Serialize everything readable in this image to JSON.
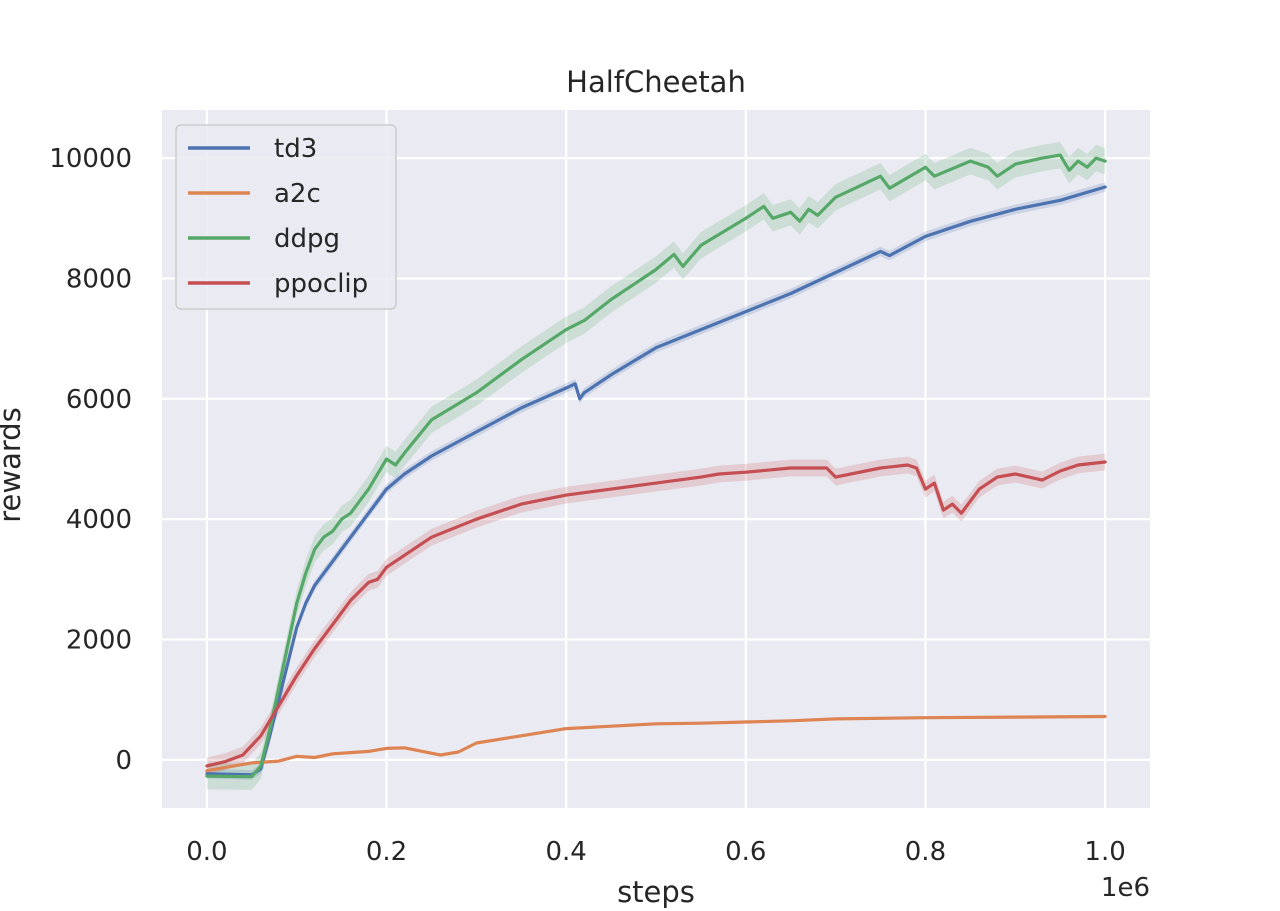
{
  "chart_data": {
    "type": "line",
    "title": "HalfCheetah",
    "xlabel": "steps",
    "ylabel": "rewards",
    "x_offset_label": "1e6",
    "xlim": [
      -0.05,
      1.05
    ],
    "ylim": [
      -800,
      10800
    ],
    "x_ticks": [
      0.0,
      0.2,
      0.4,
      0.6,
      0.8,
      1.0
    ],
    "x_tick_labels": [
      "0.0",
      "0.2",
      "0.4",
      "0.6",
      "0.8",
      "1.0"
    ],
    "y_ticks": [
      0,
      2000,
      4000,
      6000,
      8000,
      10000
    ],
    "y_tick_labels": [
      "0",
      "2000",
      "4000",
      "6000",
      "8000",
      "10000"
    ],
    "grid": true,
    "background": "#eaeaf2",
    "legend_position": "upper-left",
    "series": [
      {
        "name": "td3",
        "color": "#4c72b0",
        "x": [
          0.0,
          0.05,
          0.06,
          0.07,
          0.08,
          0.09,
          0.1,
          0.11,
          0.12,
          0.13,
          0.14,
          0.15,
          0.16,
          0.17,
          0.18,
          0.2,
          0.22,
          0.25,
          0.3,
          0.35,
          0.4,
          0.41,
          0.415,
          0.42,
          0.45,
          0.5,
          0.55,
          0.6,
          0.65,
          0.7,
          0.75,
          0.76,
          0.8,
          0.85,
          0.9,
          0.95,
          1.0
        ],
        "y": [
          -230,
          -250,
          -150,
          400,
          1000,
          1600,
          2200,
          2600,
          2900,
          3100,
          3300,
          3500,
          3700,
          3900,
          4100,
          4500,
          4750,
          5050,
          5450,
          5850,
          6180,
          6250,
          6000,
          6100,
          6400,
          6850,
          7150,
          7450,
          7750,
          8100,
          8450,
          8380,
          8700,
          8950,
          9150,
          9300,
          9520
        ],
        "band": 80
      },
      {
        "name": "a2c",
        "color": "#dd8452",
        "x": [
          0.0,
          0.03,
          0.05,
          0.08,
          0.1,
          0.12,
          0.14,
          0.16,
          0.18,
          0.2,
          0.22,
          0.24,
          0.26,
          0.28,
          0.3,
          0.35,
          0.4,
          0.45,
          0.5,
          0.55,
          0.6,
          0.65,
          0.7,
          0.8,
          0.9,
          1.0
        ],
        "y": [
          -180,
          -100,
          -50,
          -20,
          60,
          40,
          100,
          120,
          140,
          190,
          200,
          140,
          80,
          130,
          280,
          400,
          520,
          560,
          600,
          610,
          630,
          650,
          680,
          700,
          710,
          720
        ],
        "band": 20
      },
      {
        "name": "ddpg",
        "color": "#55a868",
        "x": [
          0.0,
          0.05,
          0.06,
          0.07,
          0.08,
          0.09,
          0.1,
          0.11,
          0.12,
          0.13,
          0.14,
          0.15,
          0.16,
          0.17,
          0.18,
          0.2,
          0.21,
          0.22,
          0.25,
          0.3,
          0.35,
          0.4,
          0.42,
          0.45,
          0.5,
          0.52,
          0.53,
          0.55,
          0.6,
          0.62,
          0.63,
          0.65,
          0.66,
          0.67,
          0.68,
          0.7,
          0.75,
          0.76,
          0.8,
          0.81,
          0.85,
          0.87,
          0.88,
          0.9,
          0.93,
          0.95,
          0.96,
          0.97,
          0.98,
          0.99,
          1.0
        ],
        "y": [
          -270,
          -280,
          -100,
          500,
          1200,
          1900,
          2600,
          3100,
          3500,
          3700,
          3800,
          4000,
          4100,
          4300,
          4500,
          5000,
          4900,
          5100,
          5650,
          6100,
          6650,
          7150,
          7300,
          7650,
          8150,
          8400,
          8200,
          8550,
          9000,
          9200,
          9000,
          9100,
          8950,
          9150,
          9050,
          9350,
          9700,
          9500,
          9850,
          9700,
          9950,
          9850,
          9700,
          9900,
          10000,
          10050,
          9800,
          9950,
          9850,
          10000,
          9950
        ],
        "band": 220
      },
      {
        "name": "ppoclip",
        "color": "#c44e52",
        "x": [
          0.0,
          0.02,
          0.04,
          0.06,
          0.08,
          0.1,
          0.12,
          0.14,
          0.16,
          0.18,
          0.19,
          0.2,
          0.25,
          0.3,
          0.35,
          0.4,
          0.45,
          0.5,
          0.55,
          0.57,
          0.6,
          0.65,
          0.69,
          0.7,
          0.75,
          0.78,
          0.79,
          0.8,
          0.81,
          0.82,
          0.83,
          0.84,
          0.86,
          0.88,
          0.9,
          0.93,
          0.95,
          0.97,
          1.0
        ],
        "y": [
          -100,
          -30,
          80,
          400,
          900,
          1400,
          1850,
          2250,
          2650,
          2950,
          3000,
          3200,
          3700,
          4000,
          4250,
          4400,
          4500,
          4600,
          4700,
          4750,
          4780,
          4850,
          4850,
          4700,
          4850,
          4900,
          4850,
          4500,
          4600,
          4150,
          4250,
          4100,
          4500,
          4700,
          4750,
          4650,
          4800,
          4900,
          4950
        ],
        "band": 140
      }
    ]
  }
}
